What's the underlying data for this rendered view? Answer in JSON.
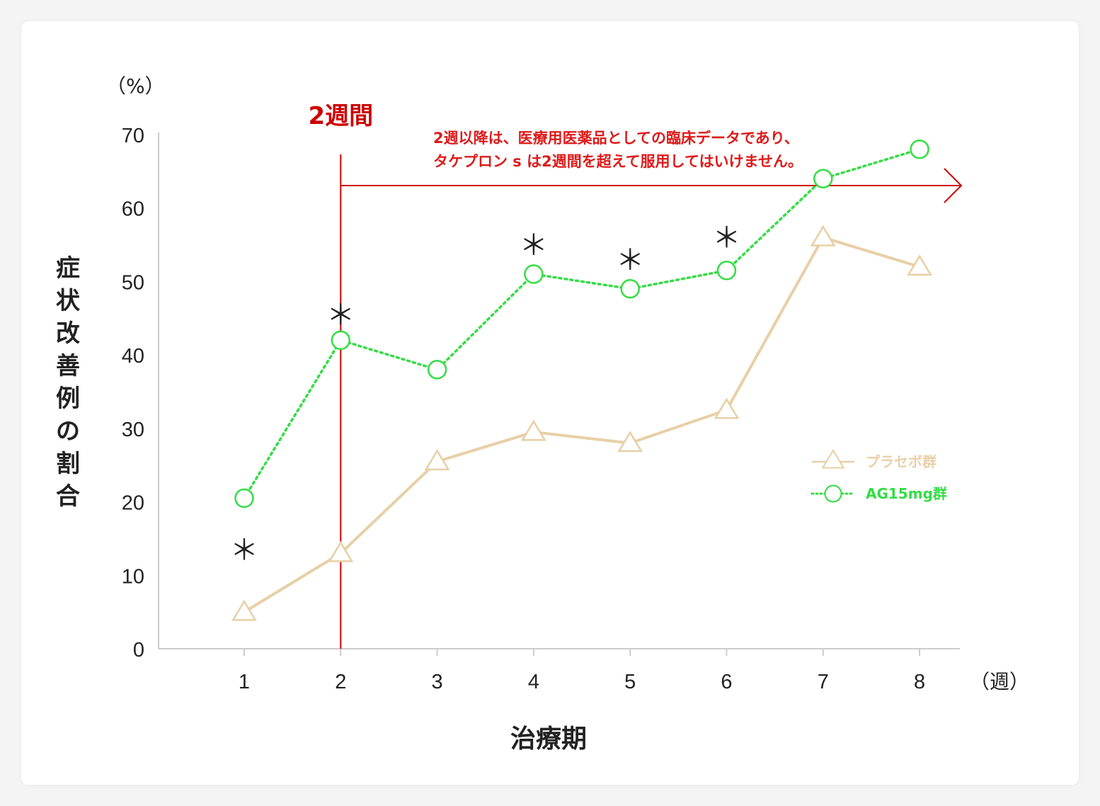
{
  "colors": {
    "placebo": "#e8cfa6",
    "ag15mg": "#33dd44",
    "accent": "#cc0000",
    "axis": "#cccccc",
    "text": "#222222"
  },
  "chart_data": {
    "type": "line",
    "x": [
      1,
      2,
      3,
      4,
      5,
      6,
      7,
      8
    ],
    "x_tick_labels": [
      "1",
      "2",
      "3",
      "4",
      "5",
      "6",
      "7",
      "8"
    ],
    "x_unit": "（週）",
    "xlabel": "治療期",
    "ylabel": "症状改善例の割合",
    "y_unit": "（%）",
    "ylim": [
      0,
      70
    ],
    "y_ticks": [
      0,
      10,
      20,
      30,
      40,
      50,
      60,
      70
    ],
    "grid": false,
    "legend_position": "right",
    "series": [
      {
        "name": "プラセボ群",
        "marker": "triangle",
        "line": "solid",
        "values": [
          5,
          13,
          25.5,
          29.5,
          28,
          32.5,
          56,
          52
        ]
      },
      {
        "name": "AG15mg群",
        "marker": "circle",
        "line": "dotted",
        "values": [
          20.5,
          42,
          38,
          51,
          49,
          51.5,
          64,
          68
        ]
      }
    ],
    "significance_marker": "＊",
    "significance": [
      {
        "x": 1,
        "value": 13.5,
        "text": "＊"
      },
      {
        "x": 2,
        "value": 45.5,
        "text": "＊"
      },
      {
        "x": 4,
        "value": 55,
        "text": "＊"
      },
      {
        "x": 5,
        "value": 53,
        "text": "＊"
      },
      {
        "x": 6,
        "value": 56,
        "text": "＊"
      }
    ],
    "annotation": {
      "label": "2週間",
      "x": 2,
      "note_lines": [
        "2週以降は、医療用医薬品としての臨床データであり、",
        "タケプロン s は2週間を超えて服用してはいけません。"
      ]
    }
  }
}
